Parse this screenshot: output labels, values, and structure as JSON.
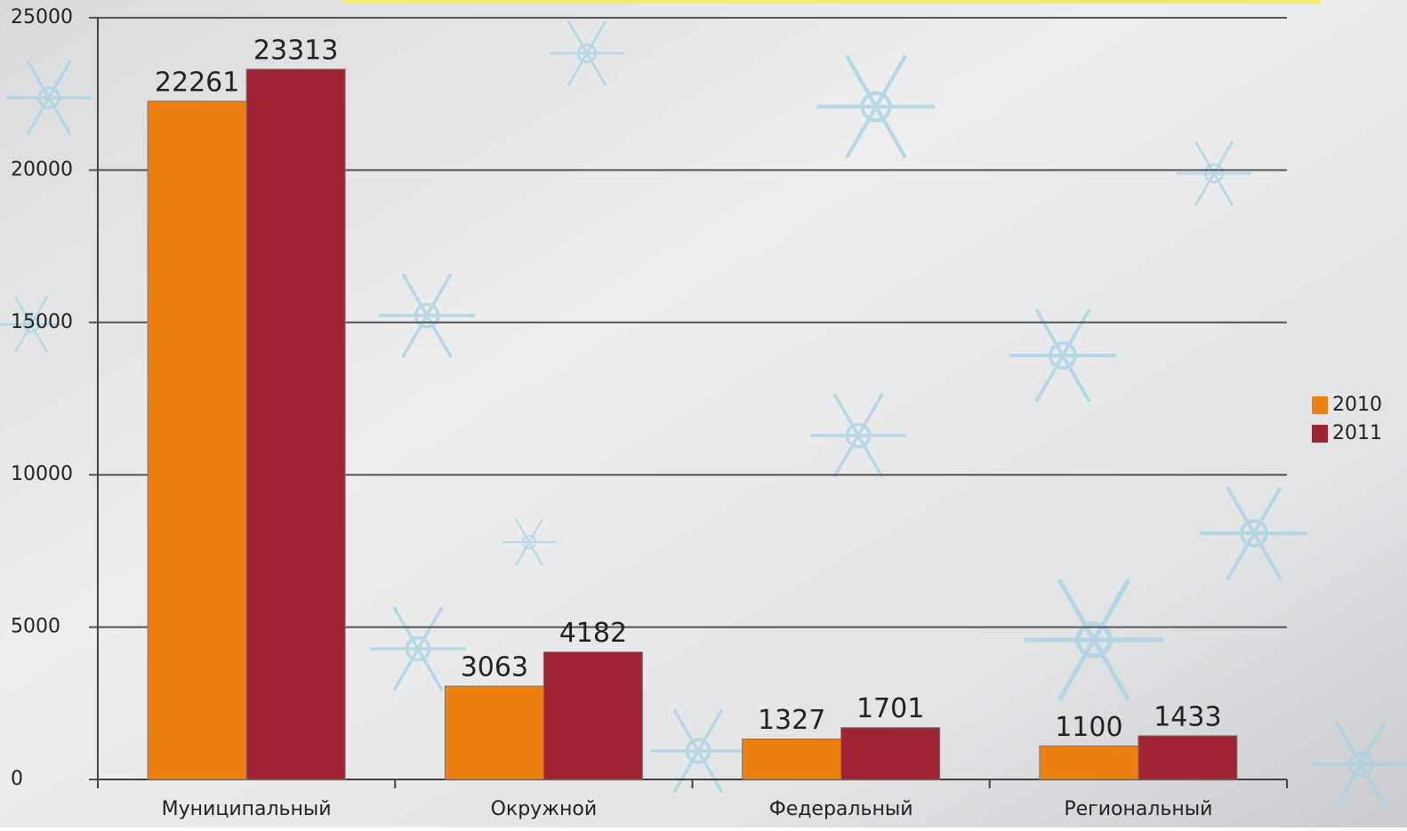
{
  "chart_data": {
    "type": "bar",
    "categories": [
      "Муниципальный",
      "Окружной",
      "Федеральный",
      "Региональный"
    ],
    "series": [
      {
        "name": "2010",
        "color": "#ee8010",
        "values": [
          22261,
          3063,
          1327,
          1100
        ]
      },
      {
        "name": "2011",
        "color": "#a02333",
        "values": [
          23313,
          4182,
          1701,
          1433
        ]
      }
    ],
    "ylim": [
      0,
      25000
    ],
    "yticks": [
      0,
      5000,
      10000,
      15000,
      20000,
      25000
    ],
    "grid": true,
    "legend": "right"
  }
}
